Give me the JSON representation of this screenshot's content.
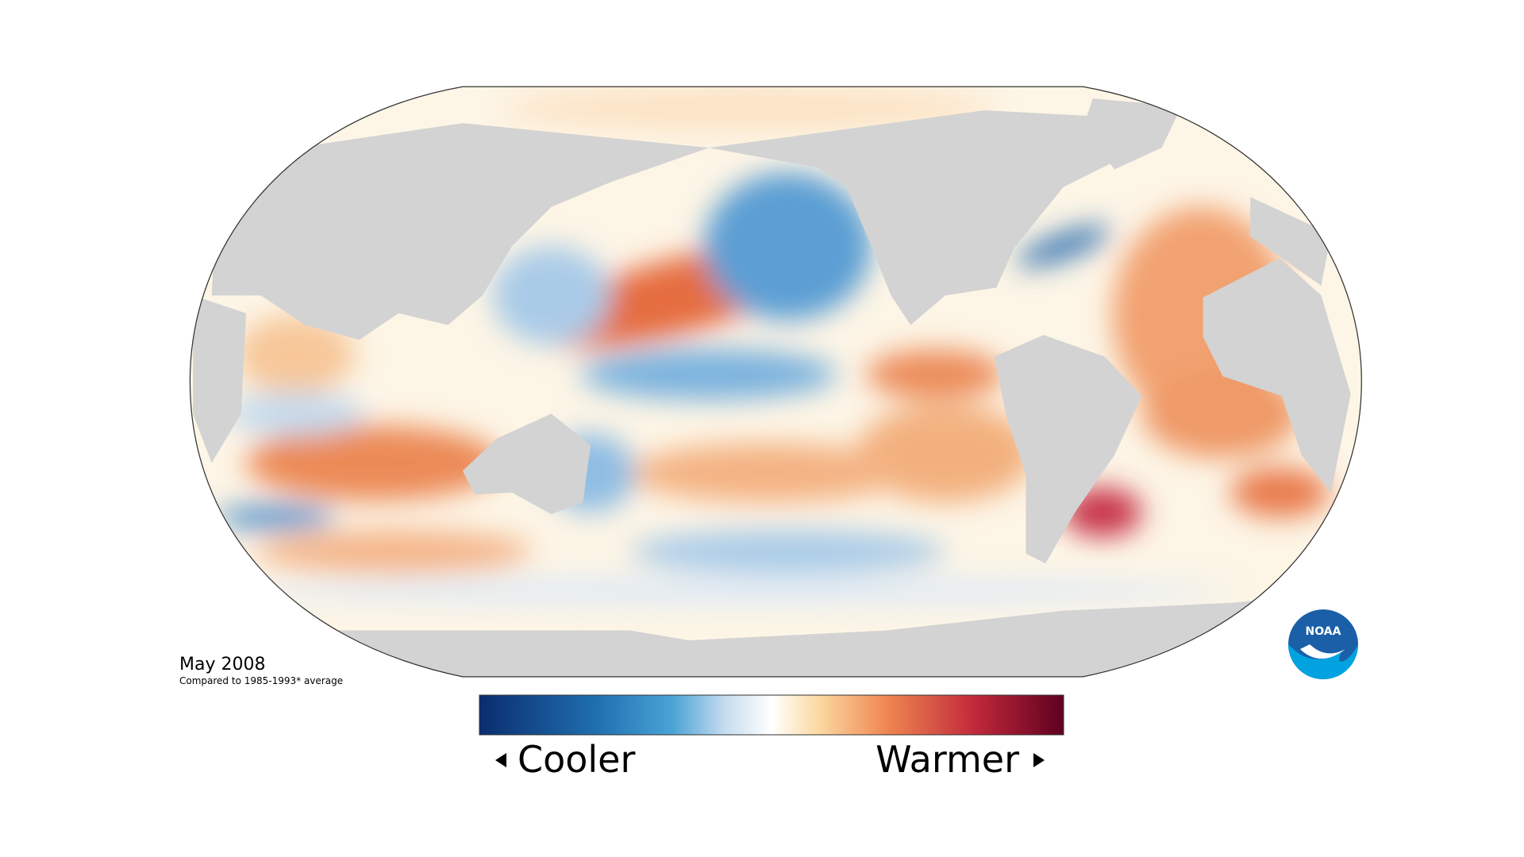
{
  "caption": {
    "date": "May 2008",
    "baseline": "Compared to 1985-1993* average"
  },
  "legend": {
    "low": "Cooler",
    "high": "Warmer"
  },
  "logo": {
    "text": "NOAA"
  }
}
